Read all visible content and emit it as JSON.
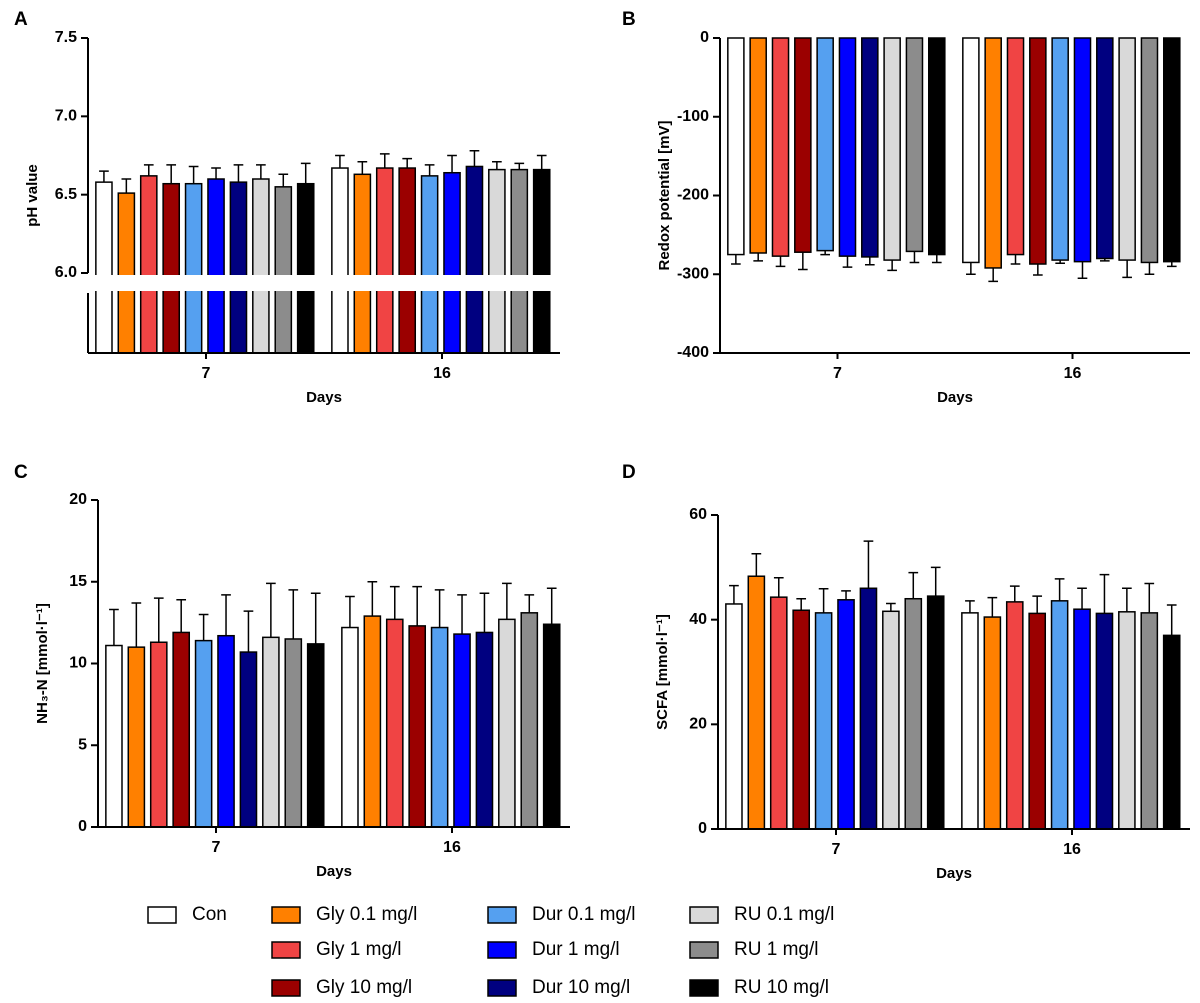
{
  "chart_data": [
    {
      "type": "bar",
      "panel": "A",
      "y_title": "pH value",
      "x_title": "Days",
      "axis_break": true,
      "categories": [
        "7",
        "16"
      ],
      "ylim": [
        6.0,
        7.5
      ],
      "yticks": [
        {
          "value": 6.0,
          "label": "6.0"
        },
        {
          "value": 6.5,
          "label": "6.5"
        },
        {
          "value": 7.0,
          "label": "7.0"
        },
        {
          "value": 7.5,
          "label": "7.5"
        }
      ],
      "series": [
        {
          "name": "Con",
          "color": "#ffffff",
          "values": [
            6.58,
            6.67
          ],
          "errors": [
            0.07,
            0.08
          ]
        },
        {
          "name": "Gly 0.1 mg/l",
          "color": "#ff8000",
          "values": [
            6.51,
            6.63
          ],
          "errors": [
            0.09,
            0.08
          ]
        },
        {
          "name": "Gly 1 mg/l",
          "color": "#f04444",
          "values": [
            6.62,
            6.67
          ],
          "errors": [
            0.07,
            0.09
          ]
        },
        {
          "name": "Gly 10 mg/l",
          "color": "#9b0000",
          "values": [
            6.57,
            6.67
          ],
          "errors": [
            0.12,
            0.06
          ]
        },
        {
          "name": "Dur 0.1 mg/l",
          "color": "#55a0f0",
          "values": [
            6.57,
            6.62
          ],
          "errors": [
            0.11,
            0.07
          ]
        },
        {
          "name": "Dur 1 mg/l",
          "color": "#0000ff",
          "values": [
            6.6,
            6.64
          ],
          "errors": [
            0.07,
            0.11
          ]
        },
        {
          "name": "Dur 10 mg/l",
          "color": "#000080",
          "values": [
            6.58,
            6.68
          ],
          "errors": [
            0.11,
            0.1
          ]
        },
        {
          "name": "RU 0.1 mg/l",
          "color": "#d9d9d9",
          "values": [
            6.6,
            6.66
          ],
          "errors": [
            0.09,
            0.05
          ]
        },
        {
          "name": "RU 1 mg/l",
          "color": "#8c8c8c",
          "values": [
            6.55,
            6.66
          ],
          "errors": [
            0.08,
            0.04
          ]
        },
        {
          "name": "RU 10 mg/l",
          "color": "#000000",
          "values": [
            6.57,
            6.66
          ],
          "errors": [
            0.13,
            0.09
          ]
        }
      ]
    },
    {
      "type": "bar",
      "panel": "B",
      "y_title": "Redox potential [mV]",
      "x_title": "Days",
      "categories": [
        "7",
        "16"
      ],
      "ylim": [
        -400,
        0
      ],
      "yticks": [
        0,
        -100,
        -200,
        -300,
        -400
      ],
      "series": [
        {
          "values": [
            -275,
            -285
          ],
          "errors": [
            12,
            15
          ]
        },
        {
          "values": [
            -273,
            -292
          ],
          "errors": [
            10,
            17
          ]
        },
        {
          "values": [
            -277,
            -275
          ],
          "errors": [
            13,
            12
          ]
        },
        {
          "values": [
            -272,
            -287
          ],
          "errors": [
            22,
            14
          ]
        },
        {
          "values": [
            -270,
            -282
          ],
          "errors": [
            5,
            4
          ]
        },
        {
          "values": [
            -277,
            -284
          ],
          "errors": [
            14,
            21
          ]
        },
        {
          "values": [
            -278,
            -280
          ],
          "errors": [
            10,
            3
          ]
        },
        {
          "values": [
            -282,
            -282
          ],
          "errors": [
            13,
            22
          ]
        },
        {
          "values": [
            -271,
            -285
          ],
          "errors": [
            14,
            15
          ]
        },
        {
          "values": [
            -275,
            -284
          ],
          "errors": [
            10,
            6
          ]
        }
      ]
    },
    {
      "type": "bar",
      "panel": "C",
      "y_title": "NH₃-N [mmol·l⁻¹]",
      "x_title": "Days",
      "categories": [
        "7",
        "16"
      ],
      "ylim": [
        0,
        20
      ],
      "yticks": [
        0,
        5,
        10,
        15,
        20
      ],
      "series": [
        {
          "values": [
            11.1,
            12.2
          ],
          "errors": [
            2.2,
            1.9
          ]
        },
        {
          "values": [
            11.0,
            12.9
          ],
          "errors": [
            2.7,
            2.1
          ]
        },
        {
          "values": [
            11.3,
            12.7
          ],
          "errors": [
            2.7,
            2.0
          ]
        },
        {
          "values": [
            11.9,
            12.3
          ],
          "errors": [
            2.0,
            2.4
          ]
        },
        {
          "values": [
            11.4,
            12.2
          ],
          "errors": [
            1.6,
            2.3
          ]
        },
        {
          "values": [
            11.7,
            11.8
          ],
          "errors": [
            2.5,
            2.4
          ]
        },
        {
          "values": [
            10.7,
            11.9
          ],
          "errors": [
            2.5,
            2.4
          ]
        },
        {
          "values": [
            11.6,
            12.7
          ],
          "errors": [
            3.3,
            2.2
          ]
        },
        {
          "values": [
            11.5,
            13.1
          ],
          "errors": [
            3.0,
            1.1
          ]
        },
        {
          "values": [
            11.2,
            12.4
          ],
          "errors": [
            3.1,
            2.2
          ]
        }
      ]
    },
    {
      "type": "bar",
      "panel": "D",
      "y_title": "SCFA [mmol·l⁻¹]",
      "x_title": "Days",
      "categories": [
        "7",
        "16"
      ],
      "ylim": [
        0,
        60
      ],
      "yticks": [
        0,
        20,
        40,
        60
      ],
      "series": [
        {
          "values": [
            43.0,
            41.3
          ],
          "errors": [
            3.5,
            2.3
          ]
        },
        {
          "values": [
            48.3,
            40.5
          ],
          "errors": [
            4.3,
            3.7
          ]
        },
        {
          "values": [
            44.3,
            43.4
          ],
          "errors": [
            3.7,
            3.0
          ]
        },
        {
          "values": [
            41.8,
            41.2
          ],
          "errors": [
            2.2,
            3.3
          ]
        },
        {
          "values": [
            41.3,
            43.6
          ],
          "errors": [
            4.6,
            4.2
          ]
        },
        {
          "values": [
            43.8,
            42.0
          ],
          "errors": [
            1.7,
            4.0
          ]
        },
        {
          "values": [
            46.0,
            41.2
          ],
          "errors": [
            9.0,
            7.4
          ]
        },
        {
          "values": [
            41.6,
            41.5
          ],
          "errors": [
            1.5,
            4.5
          ]
        },
        {
          "values": [
            44.0,
            41.3
          ],
          "errors": [
            5.0,
            5.6
          ]
        },
        {
          "values": [
            44.5,
            37.0
          ],
          "errors": [
            5.5,
            5.8
          ]
        }
      ]
    }
  ]
}
